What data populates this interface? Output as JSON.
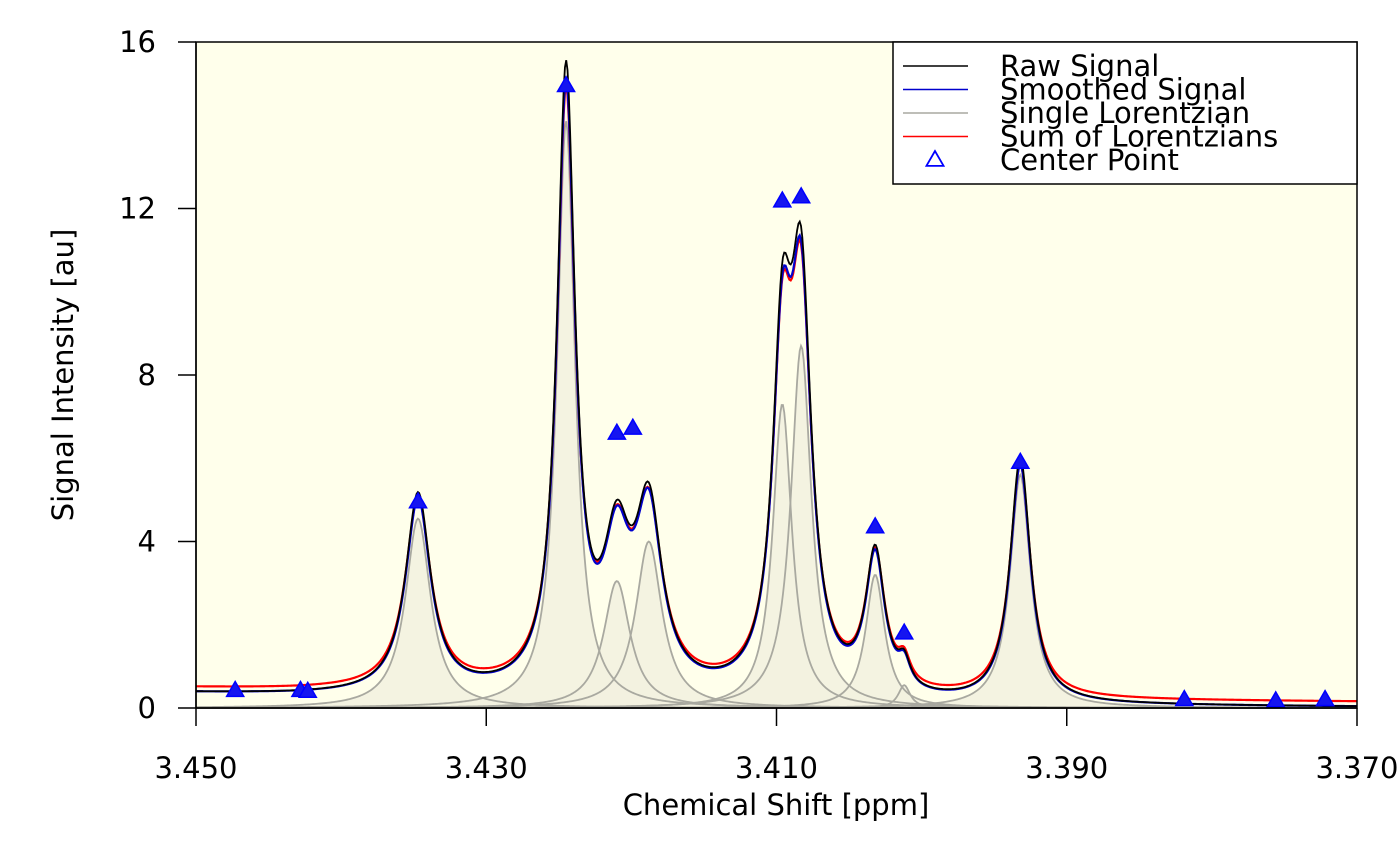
{
  "chart_data": {
    "type": "line",
    "title": "",
    "xlabel": "Chemical Shift [ppm]",
    "ylabel": "Signal Intensity [au]",
    "xlim": [
      3.45,
      3.37
    ],
    "ylim": [
      0,
      16
    ],
    "x_reversed": true,
    "x_ticks": [
      "3.450",
      "3.430",
      "3.410",
      "3.390",
      "3.370"
    ],
    "x_tick_values": [
      3.45,
      3.43,
      3.41,
      3.39,
      3.37
    ],
    "y_ticks": [
      "0",
      "4",
      "8",
      "12",
      "16"
    ],
    "y_tick_values": [
      0,
      4,
      8,
      12,
      16
    ],
    "grid": false,
    "legend_position": "top-right",
    "background": "#FFFFEB",
    "peaks": [
      {
        "center": 3.4347,
        "height": 4.55,
        "hwhm": 0.00105
      },
      {
        "center": 3.4245,
        "height": 14.1,
        "hwhm": 0.00075
      },
      {
        "center": 3.421,
        "height": 3.05,
        "hwhm": 0.0011
      },
      {
        "center": 3.4188,
        "height": 4.0,
        "hwhm": 0.0011
      },
      {
        "center": 3.4096,
        "height": 7.3,
        "hwhm": 0.0008
      },
      {
        "center": 3.4083,
        "height": 8.7,
        "hwhm": 0.00085
      },
      {
        "center": 3.4032,
        "height": 3.2,
        "hwhm": 0.0008
      },
      {
        "center": 3.4012,
        "height": 0.55,
        "hwhm": 0.0005
      },
      {
        "center": 3.3932,
        "height": 5.6,
        "hwhm": 0.00085
      }
    ],
    "baseline": [
      {
        "x": 3.45,
        "y": 0.35
      },
      {
        "x": 3.443,
        "y": 0.3
      },
      {
        "x": 3.43,
        "y": 0.25
      },
      {
        "x": 3.4,
        "y": 0.05
      },
      {
        "x": 3.39,
        "y": 0.05
      },
      {
        "x": 3.37,
        "y": 0.02
      }
    ],
    "center_points": [
      {
        "x": 3.4473,
        "y": 0.42
      },
      {
        "x": 3.4428,
        "y": 0.42
      },
      {
        "x": 3.4423,
        "y": 0.4
      },
      {
        "x": 3.4347,
        "y": 4.95
      },
      {
        "x": 3.4245,
        "y": 14.95
      },
      {
        "x": 3.421,
        "y": 6.6
      },
      {
        "x": 3.4199,
        "y": 6.72
      },
      {
        "x": 3.4096,
        "y": 12.18
      },
      {
        "x": 3.4083,
        "y": 12.28
      },
      {
        "x": 3.4032,
        "y": 4.35
      },
      {
        "x": 3.4012,
        "y": 1.8
      },
      {
        "x": 3.3932,
        "y": 5.9
      },
      {
        "x": 3.3819,
        "y": 0.2
      },
      {
        "x": 3.3756,
        "y": 0.17
      },
      {
        "x": 3.3722,
        "y": 0.2
      }
    ],
    "series": [
      {
        "name": "Raw Signal",
        "color": "#000000",
        "marker": "line"
      },
      {
        "name": "Smoothed Signal",
        "color": "#0000CD",
        "marker": "line"
      },
      {
        "name": "Single Lorentzian",
        "color": "#A9A9A0",
        "marker": "line"
      },
      {
        "name": "Sum of Lorentzians",
        "color": "#FF0000",
        "marker": "line"
      },
      {
        "name": "Center Point",
        "color": "#0000FF",
        "marker": "triangle"
      }
    ],
    "colors": {
      "lorentzian_fill": "#F2F1DF",
      "center_point_fill": "#1515F0"
    }
  }
}
